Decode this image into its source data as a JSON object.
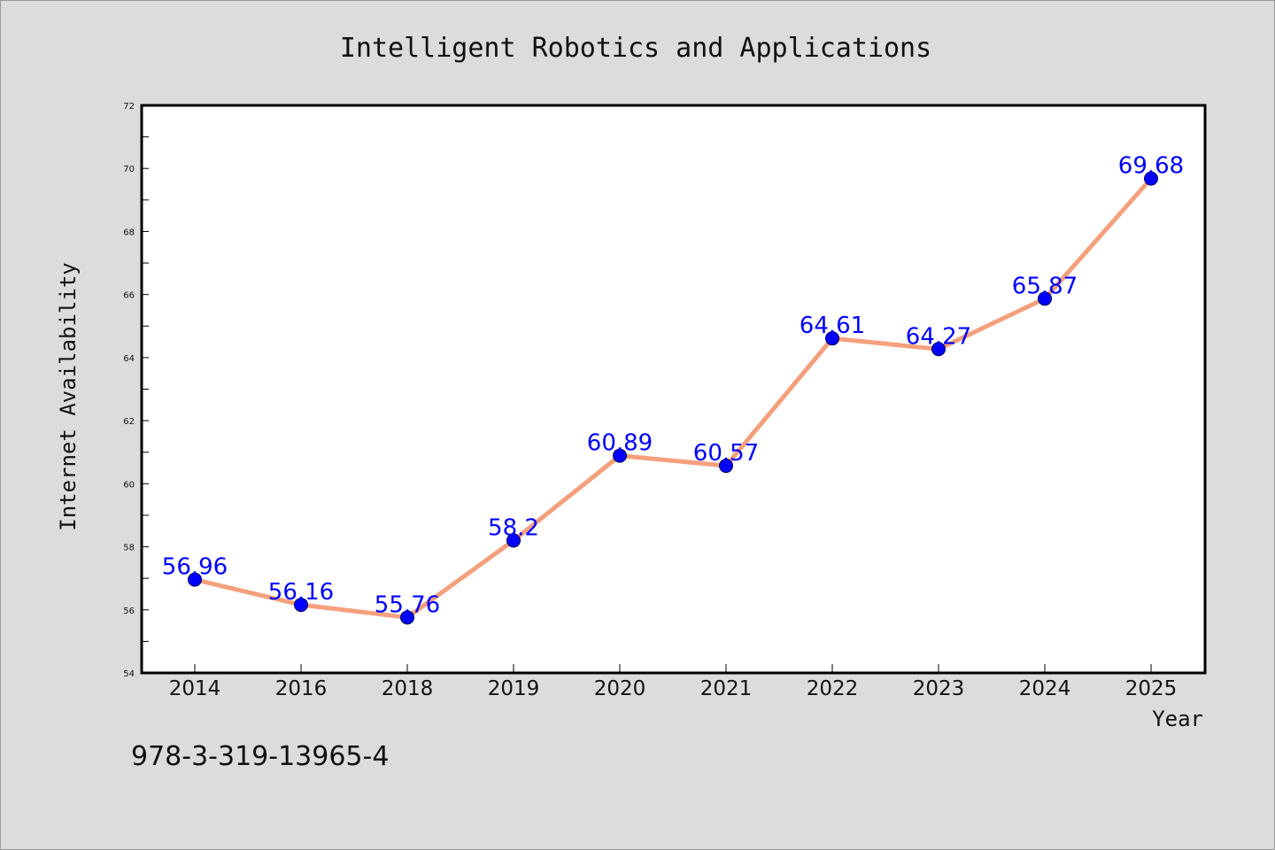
{
  "chart_data": {
    "type": "line",
    "title": "Intelligent Robotics and Applications",
    "xlabel": "Year",
    "ylabel": "Internet Availability",
    "categories": [
      "2014",
      "2016",
      "2018",
      "2019",
      "2020",
      "2021",
      "2022",
      "2023",
      "2024",
      "2025"
    ],
    "series": [
      {
        "values": [
          56.96,
          56.16,
          55.76,
          58.2,
          60.89,
          60.57,
          64.61,
          64.27,
          65.87,
          69.68
        ],
        "line_color": "#f4a07c",
        "marker_color": "#0000ff"
      }
    ],
    "data_labels": [
      "56.96",
      "56.16",
      "55.76",
      "58.2",
      "60.89",
      "60.57",
      "64.61",
      "64.27",
      "65.87",
      "69.68"
    ],
    "ylim": [
      54,
      72
    ],
    "yticks": [
      54,
      56,
      58,
      60,
      62,
      64,
      66,
      68,
      70,
      72
    ],
    "ytick_labels": [
      "54",
      "56",
      "58",
      "60",
      "62",
      "64",
      "66",
      "68",
      "70",
      "72"
    ],
    "grid": false,
    "legend": "none"
  },
  "footer": {
    "isbn": "978-3-319-13965-4"
  },
  "colors": {
    "background": "#dcdcdc",
    "plot_background": "#ffffff",
    "label_color": "#0000ff"
  }
}
